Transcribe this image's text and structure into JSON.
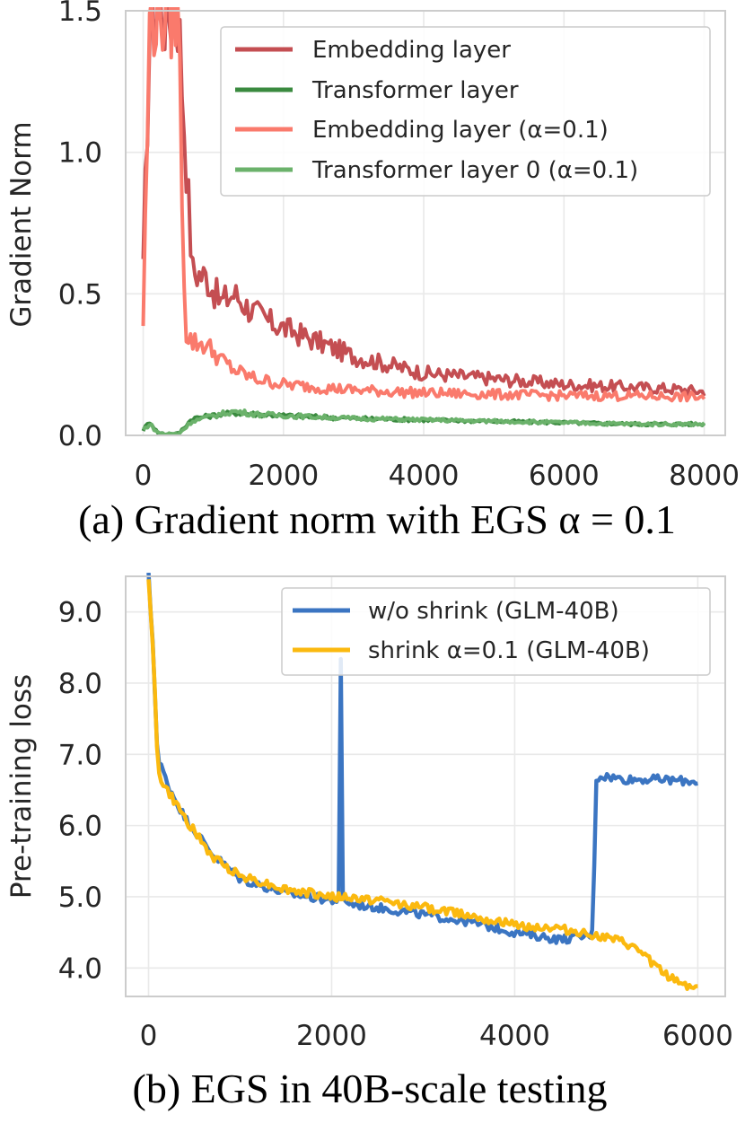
{
  "chart_data": [
    {
      "type": "line",
      "caption": "(a) Gradient norm with EGS α = 0.1",
      "xlabel": "",
      "ylabel": "Gradient Norm",
      "xlim": [
        -250,
        8300
      ],
      "ylim": [
        0.0,
        1.5
      ],
      "xticks": [
        "0",
        "2000",
        "4000",
        "6000",
        "8000"
      ],
      "yticks": [
        "0.0",
        "0.5",
        "1.0",
        "1.5"
      ],
      "grid": true,
      "legend_position": "top-right",
      "series": [
        {
          "name": "Embedding layer",
          "color": "#c44e52",
          "x": [
            0,
            100,
            200,
            300,
            500,
            700,
            900,
            1100,
            1300,
            1500,
            1800,
            2100,
            2500,
            3000,
            3500,
            4000,
            4500,
            5000,
            5500,
            6000,
            6500,
            7000,
            7500,
            8000
          ],
          "y": [
            0.57,
            1.5,
            1.5,
            1.5,
            1.5,
            0.58,
            0.56,
            0.47,
            0.5,
            0.45,
            0.4,
            0.37,
            0.33,
            0.28,
            0.25,
            0.22,
            0.21,
            0.2,
            0.19,
            0.18,
            0.175,
            0.17,
            0.165,
            0.155
          ]
        },
        {
          "name": "Transformer layer",
          "color": "#3a8a3f",
          "x": [
            0,
            100,
            200,
            300,
            500,
            700,
            1000,
            1300,
            1600,
            2000,
            2500,
            3000,
            4000,
            5000,
            6000,
            7000,
            8000
          ],
          "y": [
            0.02,
            0.05,
            0.01,
            0.005,
            0.005,
            0.06,
            0.07,
            0.08,
            0.075,
            0.07,
            0.065,
            0.06,
            0.055,
            0.05,
            0.045,
            0.04,
            0.04
          ]
        },
        {
          "name": "Embedding layer (α=0.1)",
          "color": "#fa7a6c",
          "x": [
            0,
            100,
            200,
            300,
            500,
            600,
            700,
            900,
            1100,
            1300,
            1600,
            2000,
            2500,
            3000,
            4000,
            5000,
            6000,
            7000,
            8000
          ],
          "y": [
            0.4,
            1.5,
            1.5,
            1.5,
            1.5,
            0.37,
            0.33,
            0.32,
            0.27,
            0.23,
            0.2,
            0.18,
            0.17,
            0.16,
            0.15,
            0.145,
            0.14,
            0.14,
            0.135
          ]
        },
        {
          "name": "Transformer layer 0 (α=0.1)",
          "color": "#6bb26b",
          "x": [
            0,
            100,
            200,
            300,
            500,
            700,
            1000,
            1300,
            1600,
            2000,
            2500,
            3000,
            4000,
            5000,
            6000,
            7000,
            8000
          ],
          "y": [
            0.02,
            0.04,
            0.01,
            0.005,
            0.005,
            0.05,
            0.07,
            0.085,
            0.075,
            0.07,
            0.065,
            0.06,
            0.055,
            0.05,
            0.045,
            0.04,
            0.04
          ]
        }
      ]
    },
    {
      "type": "line",
      "caption": "(b) EGS in 40B-scale testing",
      "xlabel": "",
      "ylabel": "Pre-training loss",
      "xlim": [
        -250,
        6300
      ],
      "ylim": [
        3.6,
        9.5
      ],
      "xticks": [
        "0",
        "2000",
        "4000",
        "6000"
      ],
      "yticks": [
        "4.0",
        "5.0",
        "6.0",
        "7.0",
        "8.0",
        "9.0"
      ],
      "grid": true,
      "legend_position": "top-right",
      "series": [
        {
          "name": "w/o shrink (GLM-40B)",
          "color": "#3b75c2",
          "x": [
            0,
            50,
            100,
            150,
            200,
            400,
            700,
            1000,
            1500,
            2000,
            2080,
            2100,
            2120,
            2200,
            2500,
            3000,
            3500,
            4000,
            4500,
            4800,
            4860,
            4880,
            4950,
            5200,
            5500,
            6000
          ],
          "y": [
            9.5,
            8.5,
            6.9,
            6.8,
            6.6,
            6.1,
            5.6,
            5.25,
            5.05,
            4.95,
            4.95,
            8.3,
            5.0,
            4.9,
            4.85,
            4.75,
            4.65,
            4.5,
            4.4,
            4.45,
            4.5,
            6.65,
            6.7,
            6.65,
            6.65,
            6.62
          ]
        },
        {
          "name": "shrink α=0.1 (GLM-40B)",
          "color": "#fbb90f",
          "x": [
            0,
            50,
            100,
            150,
            200,
            400,
            700,
            1000,
            1500,
            2000,
            2500,
            3000,
            3500,
            4000,
            4500,
            4900,
            5200,
            5400,
            5600,
            5800,
            6000
          ],
          "y": [
            9.5,
            8.5,
            6.8,
            6.6,
            6.5,
            6.1,
            5.55,
            5.3,
            5.1,
            5.0,
            4.95,
            4.85,
            4.75,
            4.6,
            4.55,
            4.45,
            4.35,
            4.2,
            3.95,
            3.8,
            3.7
          ]
        }
      ]
    }
  ]
}
